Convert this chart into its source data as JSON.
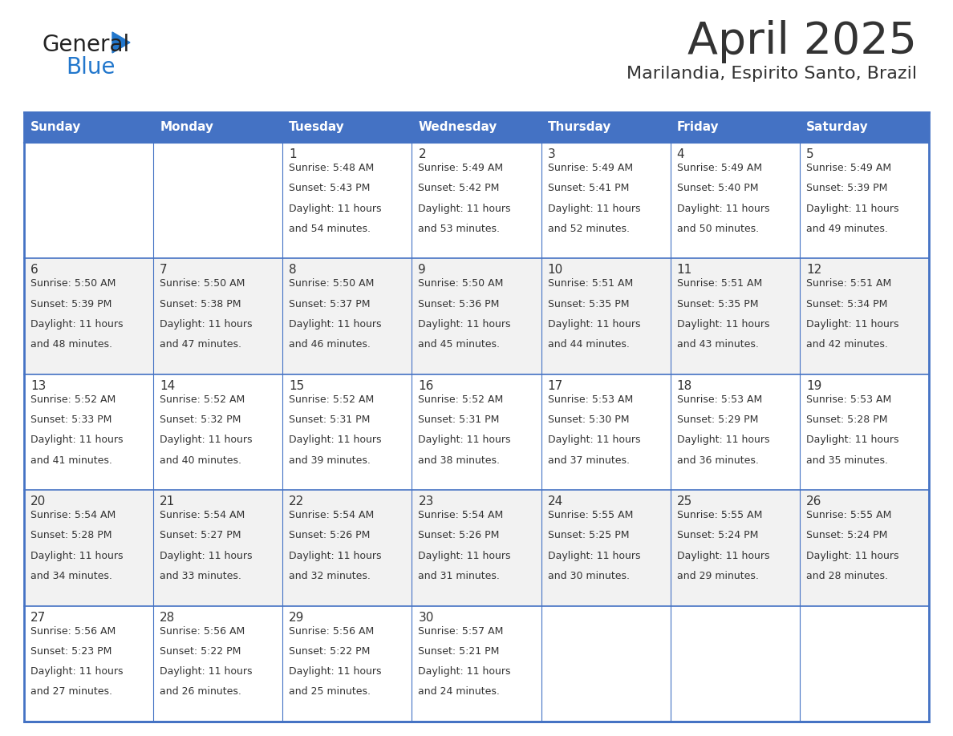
{
  "title": "April 2025",
  "subtitle": "Marilandia, Espirito Santo, Brazil",
  "header_color": "#4472C4",
  "header_text_color": "#FFFFFF",
  "background_color": "#FFFFFF",
  "alt_row_color": "#F2F2F2",
  "border_color": "#4472C4",
  "text_color": "#333333",
  "logo_black": "#222222",
  "logo_blue": "#2277CC",
  "logo_triangle_color": "#2277CC",
  "days_of_week": [
    "Sunday",
    "Monday",
    "Tuesday",
    "Wednesday",
    "Thursday",
    "Friday",
    "Saturday"
  ],
  "calendar_data": [
    [
      {
        "day": null,
        "sunrise": null,
        "sunset": null,
        "daylight": null
      },
      {
        "day": null,
        "sunrise": null,
        "sunset": null,
        "daylight": null
      },
      {
        "day": 1,
        "sunrise": "5:48 AM",
        "sunset": "5:43 PM",
        "daylight": "11 hours and 54 minutes"
      },
      {
        "day": 2,
        "sunrise": "5:49 AM",
        "sunset": "5:42 PM",
        "daylight": "11 hours and 53 minutes"
      },
      {
        "day": 3,
        "sunrise": "5:49 AM",
        "sunset": "5:41 PM",
        "daylight": "11 hours and 52 minutes"
      },
      {
        "day": 4,
        "sunrise": "5:49 AM",
        "sunset": "5:40 PM",
        "daylight": "11 hours and 50 minutes"
      },
      {
        "day": 5,
        "sunrise": "5:49 AM",
        "sunset": "5:39 PM",
        "daylight": "11 hours and 49 minutes"
      }
    ],
    [
      {
        "day": 6,
        "sunrise": "5:50 AM",
        "sunset": "5:39 PM",
        "daylight": "11 hours and 48 minutes"
      },
      {
        "day": 7,
        "sunrise": "5:50 AM",
        "sunset": "5:38 PM",
        "daylight": "11 hours and 47 minutes"
      },
      {
        "day": 8,
        "sunrise": "5:50 AM",
        "sunset": "5:37 PM",
        "daylight": "11 hours and 46 minutes"
      },
      {
        "day": 9,
        "sunrise": "5:50 AM",
        "sunset": "5:36 PM",
        "daylight": "11 hours and 45 minutes"
      },
      {
        "day": 10,
        "sunrise": "5:51 AM",
        "sunset": "5:35 PM",
        "daylight": "11 hours and 44 minutes"
      },
      {
        "day": 11,
        "sunrise": "5:51 AM",
        "sunset": "5:35 PM",
        "daylight": "11 hours and 43 minutes"
      },
      {
        "day": 12,
        "sunrise": "5:51 AM",
        "sunset": "5:34 PM",
        "daylight": "11 hours and 42 minutes"
      }
    ],
    [
      {
        "day": 13,
        "sunrise": "5:52 AM",
        "sunset": "5:33 PM",
        "daylight": "11 hours and 41 minutes"
      },
      {
        "day": 14,
        "sunrise": "5:52 AM",
        "sunset": "5:32 PM",
        "daylight": "11 hours and 40 minutes"
      },
      {
        "day": 15,
        "sunrise": "5:52 AM",
        "sunset": "5:31 PM",
        "daylight": "11 hours and 39 minutes"
      },
      {
        "day": 16,
        "sunrise": "5:52 AM",
        "sunset": "5:31 PM",
        "daylight": "11 hours and 38 minutes"
      },
      {
        "day": 17,
        "sunrise": "5:53 AM",
        "sunset": "5:30 PM",
        "daylight": "11 hours and 37 minutes"
      },
      {
        "day": 18,
        "sunrise": "5:53 AM",
        "sunset": "5:29 PM",
        "daylight": "11 hours and 36 minutes"
      },
      {
        "day": 19,
        "sunrise": "5:53 AM",
        "sunset": "5:28 PM",
        "daylight": "11 hours and 35 minutes"
      }
    ],
    [
      {
        "day": 20,
        "sunrise": "5:54 AM",
        "sunset": "5:28 PM",
        "daylight": "11 hours and 34 minutes"
      },
      {
        "day": 21,
        "sunrise": "5:54 AM",
        "sunset": "5:27 PM",
        "daylight": "11 hours and 33 minutes"
      },
      {
        "day": 22,
        "sunrise": "5:54 AM",
        "sunset": "5:26 PM",
        "daylight": "11 hours and 32 minutes"
      },
      {
        "day": 23,
        "sunrise": "5:54 AM",
        "sunset": "5:26 PM",
        "daylight": "11 hours and 31 minutes"
      },
      {
        "day": 24,
        "sunrise": "5:55 AM",
        "sunset": "5:25 PM",
        "daylight": "11 hours and 30 minutes"
      },
      {
        "day": 25,
        "sunrise": "5:55 AM",
        "sunset": "5:24 PM",
        "daylight": "11 hours and 29 minutes"
      },
      {
        "day": 26,
        "sunrise": "5:55 AM",
        "sunset": "5:24 PM",
        "daylight": "11 hours and 28 minutes"
      }
    ],
    [
      {
        "day": 27,
        "sunrise": "5:56 AM",
        "sunset": "5:23 PM",
        "daylight": "11 hours and 27 minutes"
      },
      {
        "day": 28,
        "sunrise": "5:56 AM",
        "sunset": "5:22 PM",
        "daylight": "11 hours and 26 minutes"
      },
      {
        "day": 29,
        "sunrise": "5:56 AM",
        "sunset": "5:22 PM",
        "daylight": "11 hours and 25 minutes"
      },
      {
        "day": 30,
        "sunrise": "5:57 AM",
        "sunset": "5:21 PM",
        "daylight": "11 hours and 24 minutes"
      },
      {
        "day": null,
        "sunrise": null,
        "sunset": null,
        "daylight": null
      },
      {
        "day": null,
        "sunrise": null,
        "sunset": null,
        "daylight": null
      },
      {
        "day": null,
        "sunrise": null,
        "sunset": null,
        "daylight": null
      }
    ]
  ]
}
